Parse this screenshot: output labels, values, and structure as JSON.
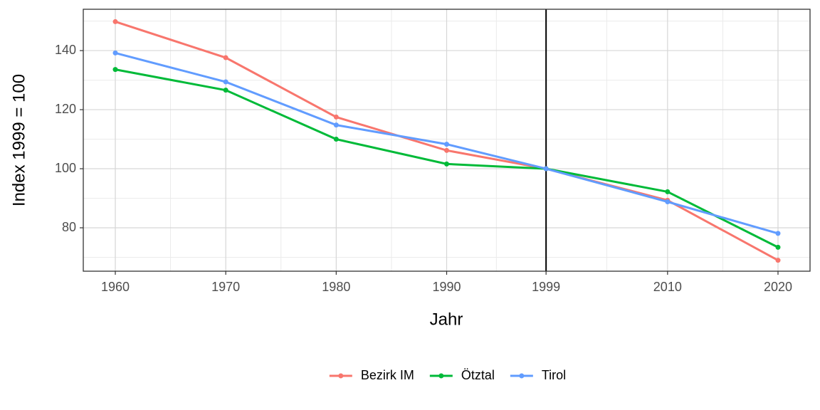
{
  "chart_data": {
    "type": "line",
    "x_label": "Jahr",
    "y_label": "Index 1999 = 100",
    "x": [
      1960,
      1970,
      1980,
      1990,
      1999,
      2010,
      2020
    ],
    "series": [
      {
        "name": "Bezirk IM",
        "color": "#F8766D",
        "values": [
          149.8,
          137.6,
          117.5,
          106.2,
          100,
          89.3,
          69.0
        ]
      },
      {
        "name": "Ötztal",
        "color": "#00BA38",
        "values": [
          133.6,
          126.6,
          110.0,
          101.6,
          100,
          92.2,
          73.4
        ]
      },
      {
        "name": "Tirol",
        "color": "#619CFF",
        "values": [
          139.2,
          129.4,
          114.8,
          108.3,
          100,
          88.8,
          78.1
        ]
      }
    ],
    "xlim": [
      1957.1,
      2022.9
    ],
    "xticks": [
      1960,
      1970,
      1980,
      1990,
      1999,
      2010,
      2020
    ],
    "ylim": [
      65.3,
      154
    ],
    "yticks": [
      80,
      100,
      120,
      140
    ],
    "vline": 1999,
    "vline_color": "#000000",
    "grid": true,
    "legend": "bottom"
  }
}
